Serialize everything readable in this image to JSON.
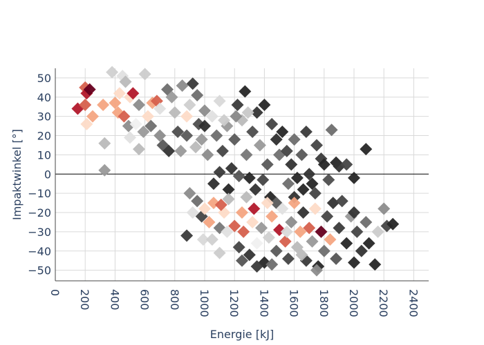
{
  "chart_data": {
    "type": "scatter",
    "x_label": "Energie [kJ]",
    "y_label": "Impaktwinkel [°]",
    "xlim": [
      0,
      2500
    ],
    "ylim": [
      -55.5,
      55
    ],
    "xticks": [
      0,
      200,
      400,
      600,
      800,
      1000,
      1200,
      1400,
      1600,
      1800,
      2000,
      2200,
      2400
    ],
    "yticks": [
      {
        "value": -50,
        "label": "−50"
      },
      {
        "value": -40,
        "label": "−40"
      },
      {
        "value": -30,
        "label": "−30"
      },
      {
        "value": -20,
        "label": "−20"
      },
      {
        "value": -10,
        "label": "−10"
      },
      0,
      10,
      20,
      30,
      40,
      50
    ],
    "grid": true,
    "marker": "diamond",
    "series": [
      {
        "x": [
          150,
          200,
          210,
          230,
          200,
          250,
          210,
          320,
          330,
          330,
          380,
          400,
          420,
          450,
          470,
          500,
          520,
          490,
          500,
          560,
          560,
          600,
          620,
          650,
          680,
          700,
          430,
          460,
          540,
          590,
          640,
          700,
          720,
          750,
          780,
          800,
          820,
          850,
          880,
          900,
          920,
          950,
          960,
          980,
          1000,
          760,
          840,
          880,
          940,
          1000,
          1020,
          1050,
          1080,
          1100,
          1120,
          1150,
          1180,
          1200,
          1220,
          1250,
          1270,
          1280,
          1300,
          1320,
          1350,
          1370,
          1400,
          1420,
          1450,
          1480,
          1500,
          1060,
          1100,
          1160,
          1230,
          1340,
          1390,
          1440,
          1130,
          1210,
          1290,
          1520,
          1550,
          1580,
          1600,
          1620,
          1650,
          1680,
          1700,
          1720,
          1750,
          1780,
          1800,
          1830,
          1850,
          1880,
          1900,
          1950,
          2000,
          2080,
          1660,
          1740,
          1560,
          1600,
          1480,
          880,
          900,
          920,
          950,
          980,
          990,
          1050,
          1000,
          1030,
          1060,
          1100,
          1100,
          1130,
          1160,
          1200,
          1230,
          1250,
          1260,
          1280,
          1300,
          1320,
          1330,
          1350,
          1380,
          1400,
          1420,
          1430,
          1450,
          1480,
          1500,
          1520,
          1540,
          1560,
          1580,
          1600,
          1620,
          1640,
          1660,
          1680,
          1700,
          1720,
          1740,
          1760,
          1780,
          1800,
          1820,
          1840,
          1860,
          1880,
          1900,
          1920,
          1950,
          1980,
          2000,
          2020,
          2050,
          2080,
          2100,
          2140,
          2160,
          2200,
          2220,
          2260,
          2000,
          1250,
          1350,
          1450,
          1550,
          1650,
          1750,
          1110,
          1150
        ],
        "values": [
          34,
          45,
          42,
          44,
          36,
          30,
          26,
          36,
          16,
          2,
          53,
          37,
          32,
          51,
          48,
          40,
          42,
          25,
          19,
          13,
          36,
          52,
          30,
          37,
          38,
          34,
          42,
          30,
          26,
          22,
          25,
          20,
          15,
          44,
          40,
          32,
          22,
          46,
          30,
          36,
          47,
          41,
          26,
          18,
          33,
          12,
          12,
          20,
          14,
          25,
          10,
          30,
          20,
          38,
          12,
          25,
          3,
          18,
          36,
          28,
          43,
          10,
          -2,
          22,
          32,
          15,
          36,
          5,
          26,
          18,
          10,
          -5,
          1,
          -8,
          -1,
          -8,
          -3,
          -12,
          28,
          30,
          32,
          22,
          12,
          5,
          18,
          -2,
          10,
          22,
          0,
          -5,
          15,
          8,
          5,
          -3,
          23,
          6,
          4,
          5,
          -2,
          13,
          -8,
          -10,
          -5,
          -12,
          -15,
          -32,
          -10,
          -20,
          -14,
          -22,
          -34,
          -34,
          -18,
          -25,
          -15,
          -41,
          -28,
          -20,
          -13,
          -27,
          -38,
          -20,
          -30,
          -12,
          -42,
          -25,
          -18,
          -36,
          -28,
          -46,
          -15,
          -33,
          -22,
          -40,
          -29,
          -18,
          -35,
          -44,
          -25,
          -15,
          -38,
          -30,
          -20,
          -45,
          -28,
          -35,
          -18,
          -48,
          -30,
          -40,
          -22,
          -34,
          -15,
          -44,
          -28,
          -14,
          -36,
          -22,
          -46,
          -30,
          -40,
          -25,
          -36,
          -47,
          -30,
          -18,
          -27,
          -26,
          -20,
          -45,
          -48,
          -47,
          -30,
          -42,
          -50,
          -16,
          -30
        ],
        "colors": [
          "#b2182b",
          "#d6604d",
          "#b2182b",
          "#67001f",
          "#d6604d",
          "#f4a582",
          "#fddbc7",
          "#f4a582",
          "#bababa",
          "#999999",
          "#d0d0d0",
          "#f4a582",
          "#f4a582",
          "#e0e0e0",
          "#bababa",
          "#fddbc7",
          "#b2182b",
          "#8c8c8c",
          "#e0e0e0",
          "#bababa",
          "#8c8c8c",
          "#cccccc",
          "#fddbc7",
          "#f4a582",
          "#d6604d",
          "#e0e0e0",
          "#fddbc7",
          "#d6604d",
          "#f0f0f0",
          "#9a9a9a",
          "#707070",
          "#8c8c8c",
          "#595959",
          "#6e6e6e",
          "#9a9a9a",
          "#bababa",
          "#4d4d4d",
          "#8c8c8c",
          "#fddbc7",
          "#cfcfcf",
          "#3a3a3a",
          "#6e6e6e",
          "#4d4d4d",
          "#999999",
          "#8c8c8c",
          "#333333",
          "#999999",
          "#5a5a5a",
          "#bababa",
          "#2e2e2e",
          "#8c8c8c",
          "#e0e0e0",
          "#6e6e6e",
          "#d9d9d9",
          "#444444",
          "#999999",
          "#333333",
          "#5a5a5a",
          "#3a3a3a",
          "#bababa",
          "#262626",
          "#777777",
          "#262626",
          "#4d4d4d",
          "#333333",
          "#999999",
          "#262626",
          "#595959",
          "#444444",
          "#2e2e2e",
          "#707070",
          "#2e2e2e",
          "#3a3a3a",
          "#262626",
          "#555555",
          "#333333",
          "#444444",
          "#262626",
          "#cccccc",
          "#888888",
          "#c8c8c8",
          "#262626",
          "#444444",
          "#333333",
          "#6e6e6e",
          "#262626",
          "#595959",
          "#3a3a3a",
          "#333333",
          "#262626",
          "#444444",
          "#3a3a3a",
          "#262626",
          "#4d4d4d",
          "#6e6e6e",
          "#262626",
          "#333333",
          "#444444",
          "#262626",
          "#262626",
          "#262626",
          "#444444",
          "#6e6e6e",
          "#333333",
          "#5a5a5a",
          "#3a3a3a",
          "#8c8c8c",
          "#e0e0e0",
          "#6e6e6e",
          "#444444",
          "#d9d9d9",
          "#d0d0d0",
          "#fddbc7",
          "#f4a582",
          "#f4a582",
          "#cccccc",
          "#777777",
          "#fddbc7",
          "#bababa",
          "#d6604d",
          "#444444",
          "#f4a582",
          "#d6604d",
          "#bababa",
          "#333333",
          "#fddbc7",
          "#b2182b",
          "#f0f0f0",
          "#999999",
          "#262626",
          "#fddbc7",
          "#d0d0d0",
          "#f4a582",
          "#5a5a5a",
          "#b2182b",
          "#e0e0e0",
          "#d6604d",
          "#444444",
          "#8c8c8c",
          "#f4a582",
          "#bababa",
          "#f4a582",
          "#333333",
          "#3a3a3a",
          "#d6604d",
          "#999999",
          "#fddbc7",
          "#262626",
          "#67001f",
          "#6e6e6e",
          "#444444",
          "#f4a582",
          "#333333",
          "#555555",
          "#3a3a3a",
          "#444444",
          "#262626",
          "#999999",
          "#262626",
          "#444444",
          "#333333",
          "#6e6e6e",
          "#262626",
          "#262626",
          "#cccccc",
          "#8c8c8c",
          "#444444",
          "#262626",
          "#333333",
          "#555555",
          "#3a3a3a",
          "#6e6e6e",
          "#d9d9d9",
          "#bababa",
          "#8c8c8c",
          "#d6604d",
          "#e0e0e0"
        ]
      }
    ]
  }
}
